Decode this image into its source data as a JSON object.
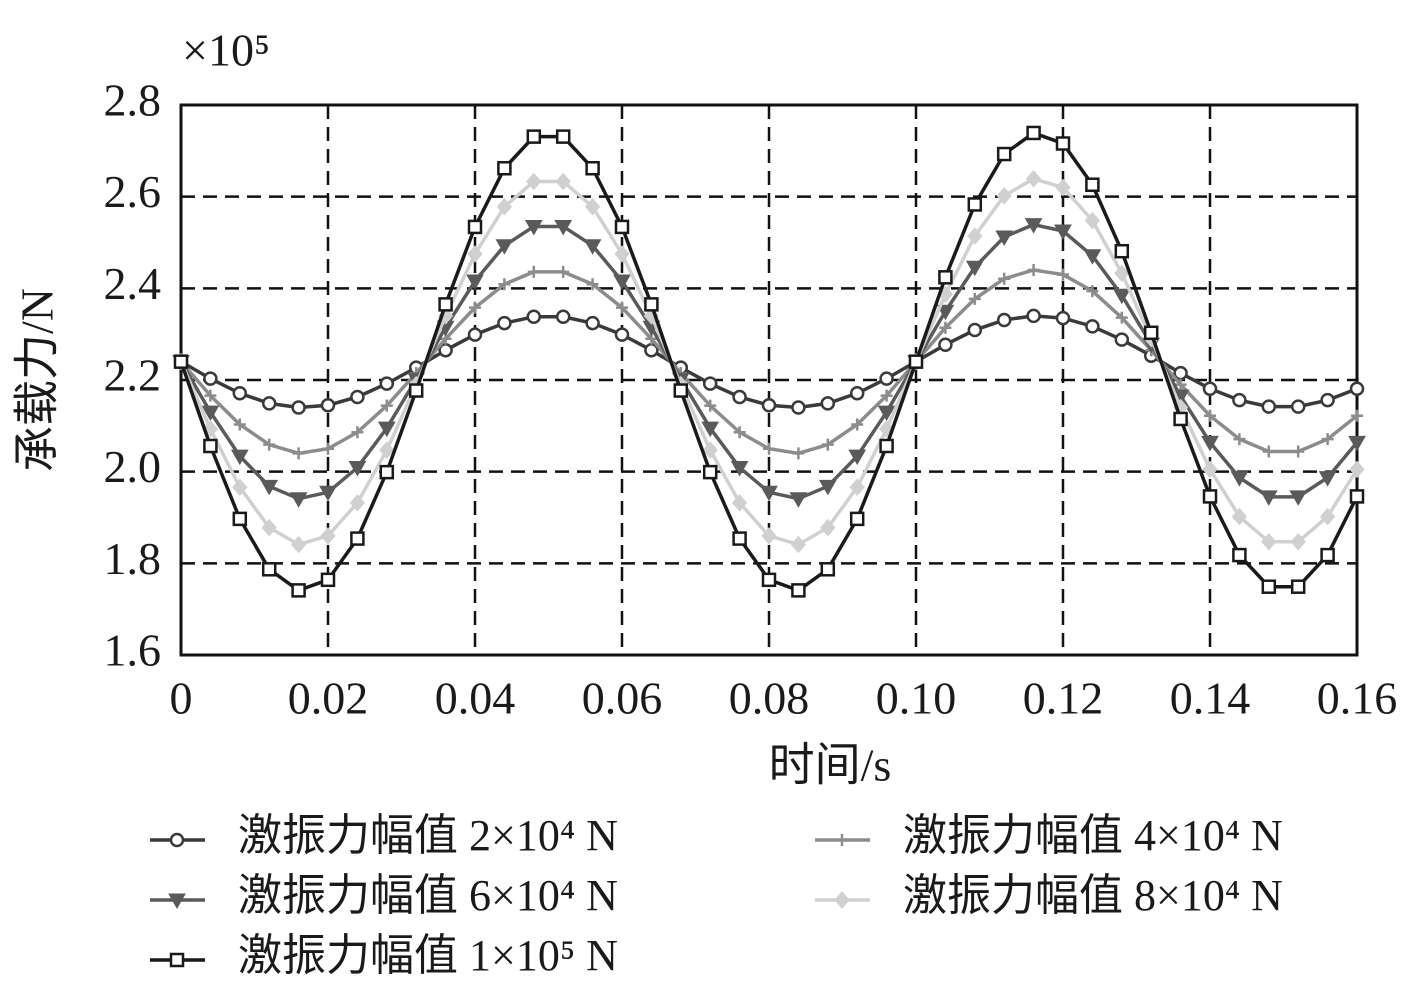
{
  "chart_data": {
    "type": "line",
    "y_label": "承载力/N",
    "x_label": "时间/s",
    "y_multiplier": "×10⁵",
    "x": [
      0,
      0.004,
      0.008,
      0.012,
      0.016,
      0.02,
      0.024,
      0.028,
      0.032,
      0.036,
      0.04,
      0.044,
      0.048,
      0.052,
      0.056,
      0.06,
      0.064,
      0.068,
      0.072,
      0.076,
      0.08,
      0.084,
      0.088,
      0.092,
      0.096,
      0.1,
      0.104,
      0.108,
      0.112,
      0.116,
      0.12,
      0.124,
      0.128,
      0.132,
      0.136,
      0.14,
      0.144,
      0.148,
      0.152,
      0.156,
      0.16
    ],
    "series": [
      {
        "name": "激振力幅值 2×10⁴ N",
        "color": "#3a3a3a",
        "marker": "circle",
        "values": [
          2.24,
          2.203,
          2.171,
          2.149,
          2.14,
          2.145,
          2.163,
          2.192,
          2.227,
          2.265,
          2.299,
          2.324,
          2.338,
          2.338,
          2.324,
          2.299,
          2.265,
          2.227,
          2.192,
          2.163,
          2.145,
          2.14,
          2.149,
          2.171,
          2.203,
          2.24,
          2.277,
          2.309,
          2.331,
          2.34,
          2.335,
          2.317,
          2.288,
          2.253,
          2.215,
          2.181,
          2.156,
          2.142,
          2.142,
          2.156,
          2.181
        ]
      },
      {
        "name": "激振力幅值 4×10⁴ N",
        "color": "#8c8c8c",
        "marker": "plus",
        "values": [
          2.24,
          2.166,
          2.103,
          2.059,
          2.04,
          2.05,
          2.086,
          2.144,
          2.215,
          2.29,
          2.358,
          2.409,
          2.436,
          2.436,
          2.409,
          2.358,
          2.29,
          2.215,
          2.144,
          2.086,
          2.05,
          2.04,
          2.059,
          2.103,
          2.166,
          2.24,
          2.314,
          2.377,
          2.421,
          2.44,
          2.43,
          2.394,
          2.336,
          2.265,
          2.19,
          2.122,
          2.071,
          2.044,
          2.044,
          2.071,
          2.122
        ]
      },
      {
        "name": "激振力幅值 6×10⁴ N",
        "color": "#5a5a5a",
        "marker": "triangle",
        "values": [
          2.24,
          2.13,
          2.034,
          1.968,
          1.941,
          1.955,
          2.009,
          2.095,
          2.202,
          2.315,
          2.416,
          2.493,
          2.535,
          2.535,
          2.493,
          2.416,
          2.315,
          2.202,
          2.095,
          2.009,
          1.955,
          1.941,
          1.968,
          2.034,
          2.13,
          2.24,
          2.35,
          2.446,
          2.512,
          2.539,
          2.525,
          2.471,
          2.385,
          2.278,
          2.165,
          2.064,
          1.987,
          1.945,
          1.945,
          1.987,
          2.064
        ]
      },
      {
        "name": "激振力幅值 8×10⁴ N",
        "color": "#d0d0d0",
        "marker": "diamond",
        "values": [
          2.24,
          2.093,
          1.966,
          1.878,
          1.841,
          1.86,
          1.932,
          2.047,
          2.19,
          2.34,
          2.475,
          2.578,
          2.633,
          2.633,
          2.578,
          2.475,
          2.34,
          2.19,
          2.047,
          1.932,
          1.86,
          1.841,
          1.878,
          1.966,
          2.093,
          2.24,
          2.387,
          2.514,
          2.602,
          2.639,
          2.62,
          2.548,
          2.433,
          2.29,
          2.14,
          2.005,
          1.902,
          1.847,
          1.847,
          1.902,
          2.005
        ]
      },
      {
        "name": "激振力幅值 1×10⁵ N",
        "color": "#1a1a1a",
        "marker": "square",
        "values": [
          2.24,
          2.056,
          1.897,
          1.787,
          1.741,
          1.764,
          1.854,
          1.999,
          2.177,
          2.365,
          2.534,
          2.662,
          2.731,
          2.731,
          2.662,
          2.534,
          2.365,
          2.177,
          1.999,
          1.854,
          1.764,
          1.741,
          1.787,
          1.897,
          2.056,
          2.24,
          2.424,
          2.583,
          2.693,
          2.739,
          2.716,
          2.626,
          2.481,
          2.303,
          2.115,
          1.946,
          1.818,
          1.749,
          1.749,
          1.818,
          1.946
        ]
      }
    ],
    "xlim": [
      0,
      0.16
    ],
    "xticks": [
      0,
      0.02,
      0.04,
      0.06,
      0.08,
      {
        "value": 0.1,
        "label": "0.10"
      },
      0.12,
      0.14,
      0.16
    ],
    "ylim": [
      1.6,
      2.8
    ],
    "yticks": [
      1.6,
      1.8,
      {
        "value": 2,
        "label": "2.0"
      },
      2.2,
      2.4,
      2.6,
      2.8
    ],
    "grid": true
  }
}
